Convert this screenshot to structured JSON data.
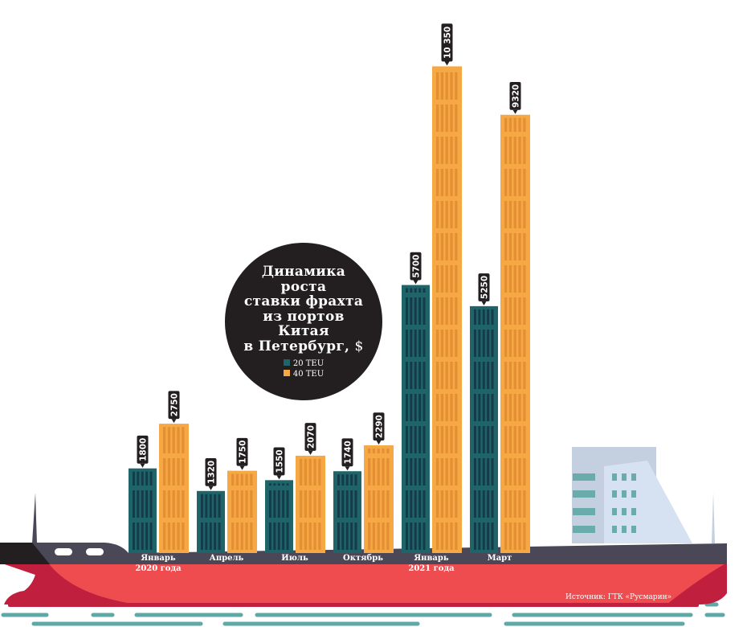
{
  "chart_data": {
    "type": "bar",
    "title": "Динамика роста ставки фрахта из портов Китая в Петербург, $",
    "categories": [
      {
        "line1": "Январь",
        "line2": "2020 года"
      },
      {
        "line1": "Апрель",
        "line2": ""
      },
      {
        "line1": "Июль",
        "line2": ""
      },
      {
        "line1": "Октябрь",
        "line2": ""
      },
      {
        "line1": "Январь",
        "line2": "2021 года"
      },
      {
        "line1": "Март",
        "line2": ""
      }
    ],
    "series": [
      {
        "name": "20 TEU",
        "color": "#1e6469",
        "values": [
          1800,
          1320,
          1550,
          1740,
          5700,
          5250
        ]
      },
      {
        "name": "40 TEU",
        "color": "#f5a843",
        "values": [
          2750,
          1750,
          2070,
          2290,
          10350,
          9320
        ]
      }
    ],
    "value_labels": {
      "20 TEU": [
        "1800",
        "1320",
        "1550",
        "1740",
        "5700",
        "5250"
      ],
      "40 TEU": [
        "2750",
        "1750",
        "2070",
        "2290",
        "10 350",
        "9320"
      ]
    },
    "legend_position": "inside-title-circle",
    "grid": false
  },
  "title": {
    "lines": [
      "Динамика",
      "роста",
      "ставки фрахта",
      "из портов",
      "Китая",
      "в Петербург,"
    ],
    "unit": "$"
  },
  "legend": [
    {
      "label": "20 TEU",
      "color": "#1e6469"
    },
    {
      "label": "40 TEU",
      "color": "#f5a843"
    }
  ],
  "source": "Источник: ГТК «Русмарин»"
}
